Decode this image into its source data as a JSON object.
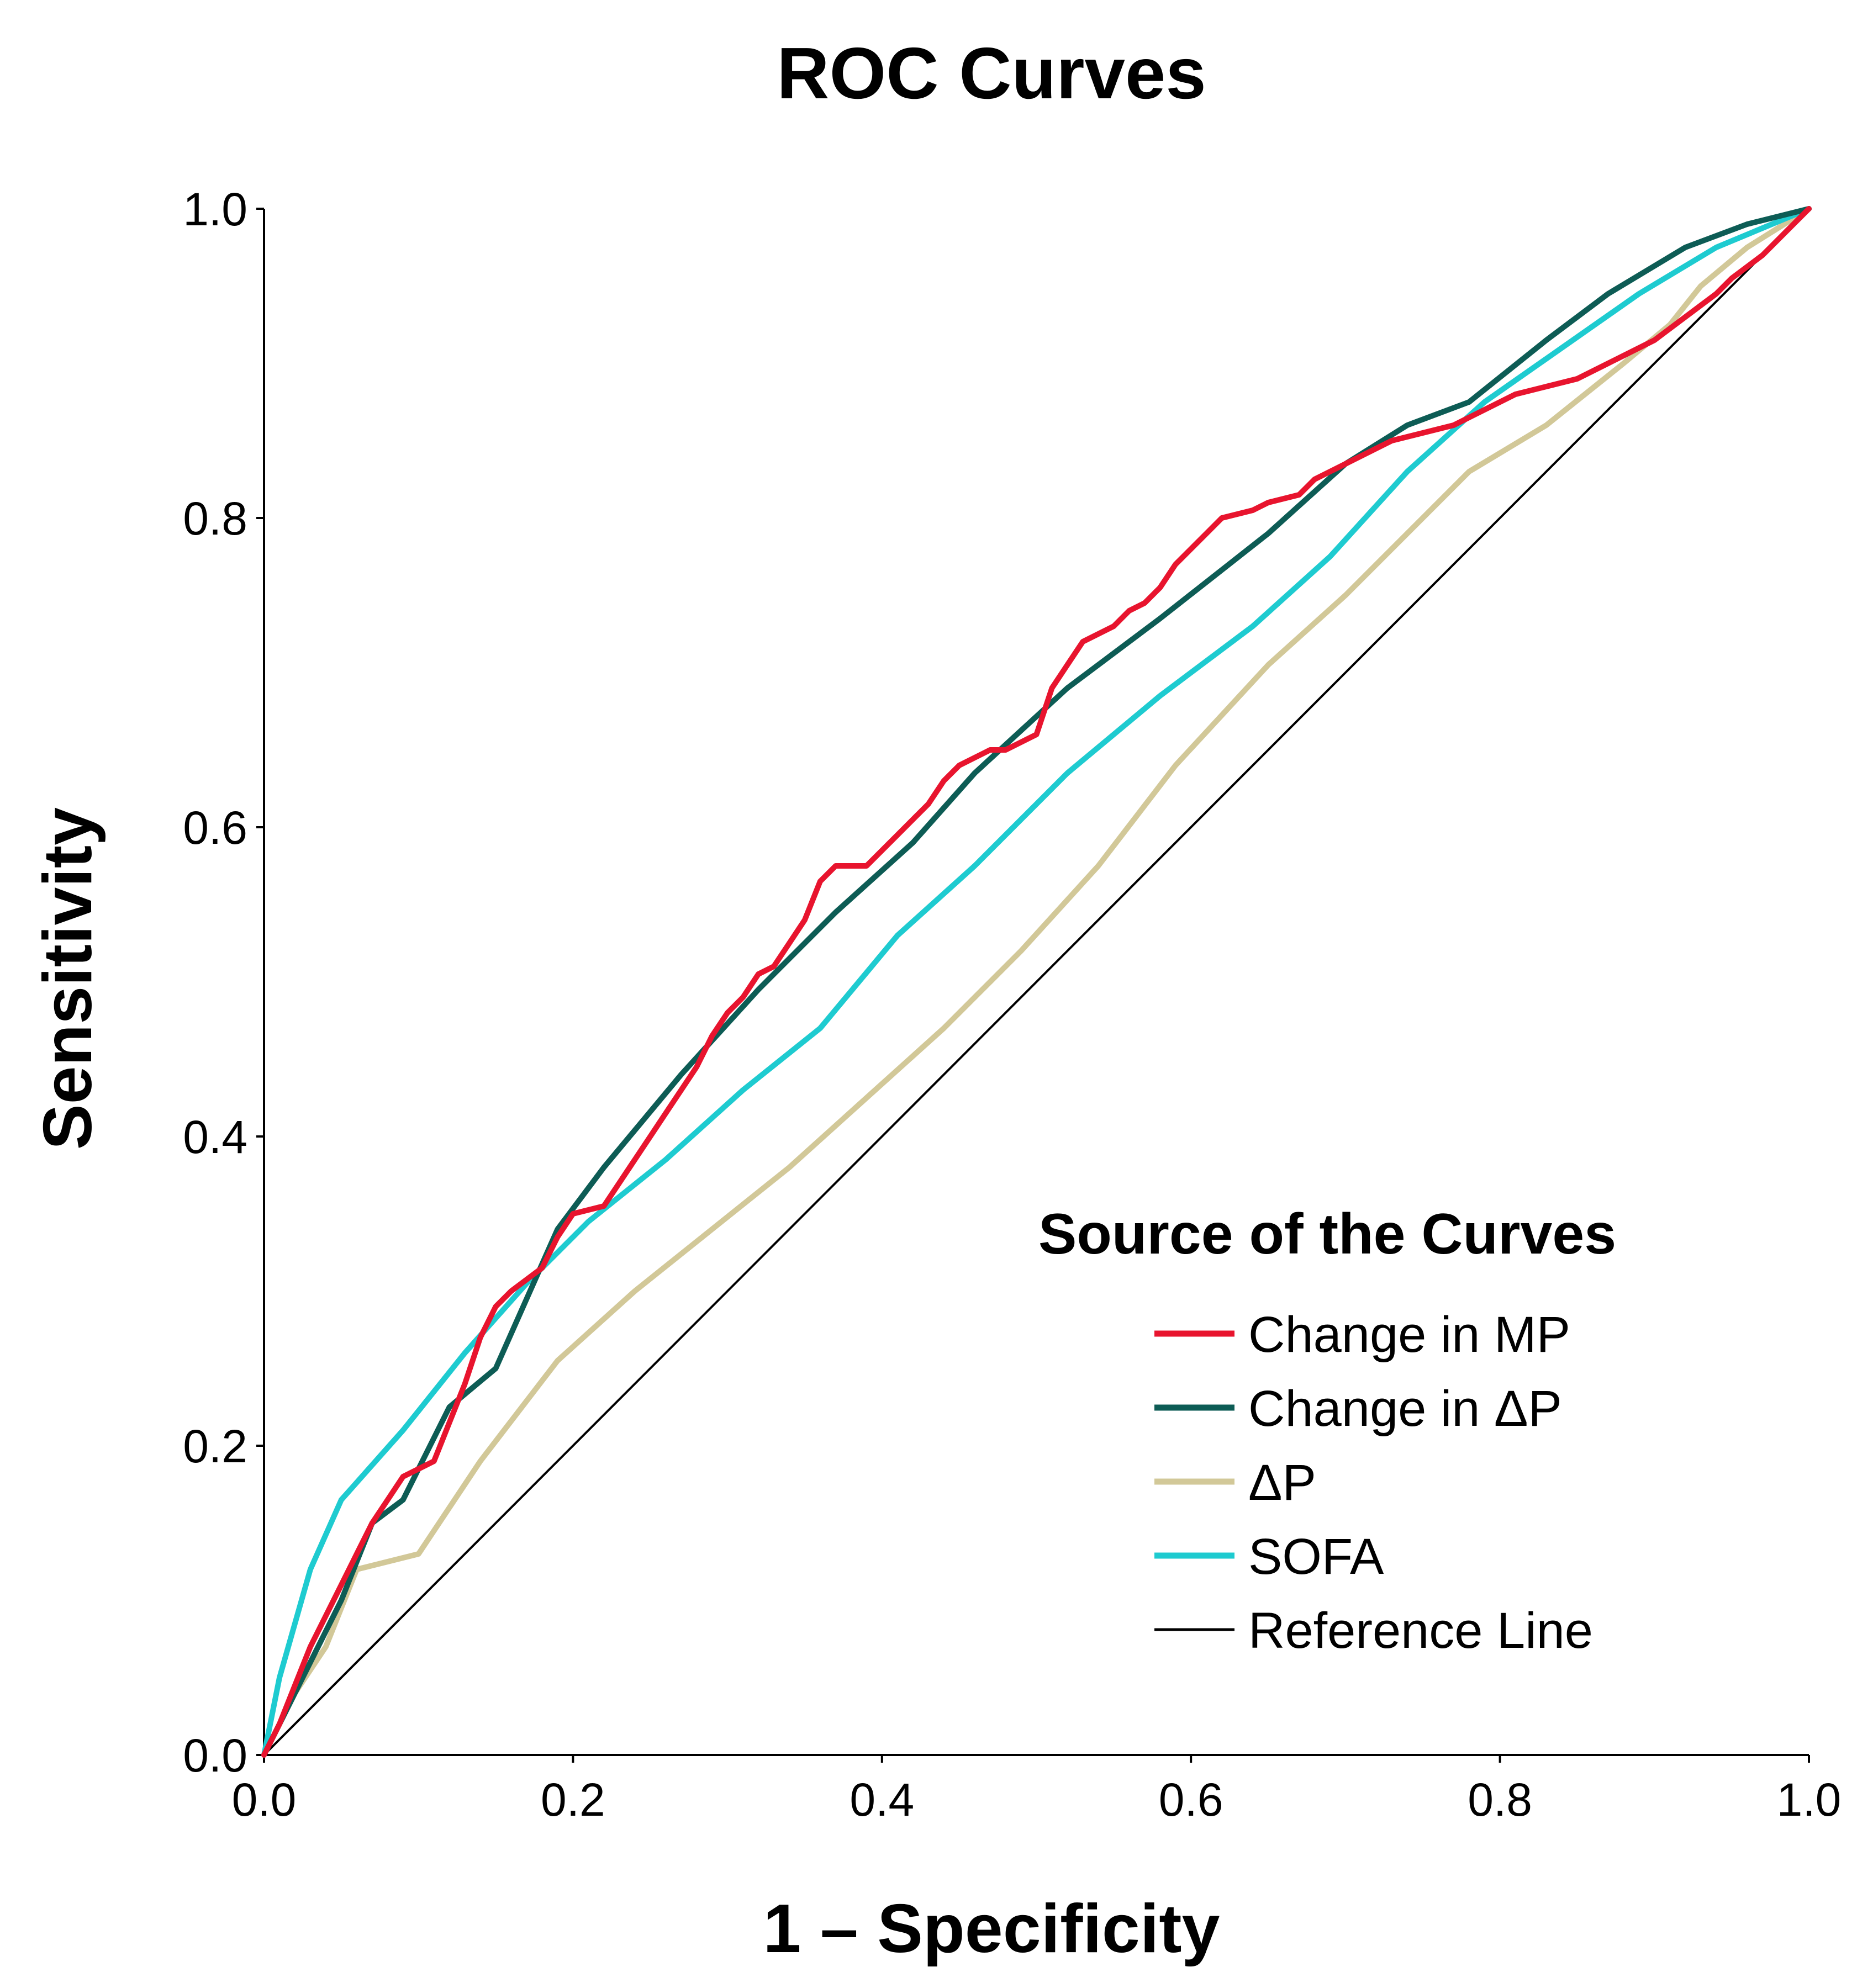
{
  "chart_data": {
    "type": "line",
    "title": "ROC Curves",
    "xlabel": "1 – Specificity",
    "ylabel": "Sensitivity",
    "xlim": [
      0.0,
      1.0
    ],
    "ylim": [
      0.0,
      1.0
    ],
    "x_ticks": [
      "0.0",
      "0.2",
      "0.4",
      "0.6",
      "0.8",
      "1.0"
    ],
    "y_ticks": [
      "0.0",
      "0.2",
      "0.4",
      "0.6",
      "0.8",
      "1.0"
    ],
    "grid": false,
    "legend": {
      "title": "Source of the Curves",
      "placement": "bottom-right"
    },
    "series": [
      {
        "name": "Change in MP",
        "color": "#e8142e",
        "points": [
          [
            0.0,
            0.0
          ],
          [
            0.01,
            0.02
          ],
          [
            0.02,
            0.045
          ],
          [
            0.03,
            0.07
          ],
          [
            0.04,
            0.09
          ],
          [
            0.05,
            0.11
          ],
          [
            0.06,
            0.13
          ],
          [
            0.07,
            0.15
          ],
          [
            0.08,
            0.165
          ],
          [
            0.09,
            0.18
          ],
          [
            0.11,
            0.19
          ],
          [
            0.12,
            0.215
          ],
          [
            0.13,
            0.24
          ],
          [
            0.14,
            0.27
          ],
          [
            0.15,
            0.29
          ],
          [
            0.16,
            0.3
          ],
          [
            0.18,
            0.315
          ],
          [
            0.19,
            0.335
          ],
          [
            0.2,
            0.35
          ],
          [
            0.22,
            0.355
          ],
          [
            0.23,
            0.37
          ],
          [
            0.24,
            0.385
          ],
          [
            0.25,
            0.4
          ],
          [
            0.26,
            0.415
          ],
          [
            0.27,
            0.43
          ],
          [
            0.28,
            0.445
          ],
          [
            0.29,
            0.465
          ],
          [
            0.3,
            0.48
          ],
          [
            0.31,
            0.49
          ],
          [
            0.32,
            0.505
          ],
          [
            0.33,
            0.51
          ],
          [
            0.34,
            0.525
          ],
          [
            0.35,
            0.54
          ],
          [
            0.36,
            0.565
          ],
          [
            0.37,
            0.575
          ],
          [
            0.39,
            0.575
          ],
          [
            0.4,
            0.585
          ],
          [
            0.41,
            0.595
          ],
          [
            0.42,
            0.605
          ],
          [
            0.43,
            0.615
          ],
          [
            0.44,
            0.63
          ],
          [
            0.45,
            0.64
          ],
          [
            0.47,
            0.65
          ],
          [
            0.48,
            0.65
          ],
          [
            0.5,
            0.66
          ],
          [
            0.51,
            0.69
          ],
          [
            0.52,
            0.705
          ],
          [
            0.53,
            0.72
          ],
          [
            0.54,
            0.725
          ],
          [
            0.55,
            0.73
          ],
          [
            0.56,
            0.74
          ],
          [
            0.57,
            0.745
          ],
          [
            0.58,
            0.755
          ],
          [
            0.59,
            0.77
          ],
          [
            0.6,
            0.78
          ],
          [
            0.61,
            0.79
          ],
          [
            0.62,
            0.8
          ],
          [
            0.64,
            0.805
          ],
          [
            0.65,
            0.81
          ],
          [
            0.67,
            0.815
          ],
          [
            0.68,
            0.825
          ],
          [
            0.7,
            0.835
          ],
          [
            0.72,
            0.845
          ],
          [
            0.73,
            0.85
          ],
          [
            0.75,
            0.855
          ],
          [
            0.77,
            0.86
          ],
          [
            0.79,
            0.87
          ],
          [
            0.81,
            0.88
          ],
          [
            0.83,
            0.885
          ],
          [
            0.85,
            0.89
          ],
          [
            0.87,
            0.9
          ],
          [
            0.88,
            0.905
          ],
          [
            0.9,
            0.915
          ],
          [
            0.92,
            0.93
          ],
          [
            0.94,
            0.945
          ],
          [
            0.95,
            0.955
          ],
          [
            0.97,
            0.97
          ],
          [
            0.99,
            0.99
          ],
          [
            1.0,
            1.0
          ]
        ]
      },
      {
        "name": "Change in ΔP",
        "color": "#0d5c55",
        "points": [
          [
            0.0,
            0.0
          ],
          [
            0.04,
            0.08
          ],
          [
            0.05,
            0.1
          ],
          [
            0.07,
            0.15
          ],
          [
            0.09,
            0.165
          ],
          [
            0.12,
            0.225
          ],
          [
            0.15,
            0.25
          ],
          [
            0.19,
            0.34
          ],
          [
            0.22,
            0.38
          ],
          [
            0.27,
            0.44
          ],
          [
            0.32,
            0.495
          ],
          [
            0.37,
            0.545
          ],
          [
            0.42,
            0.59
          ],
          [
            0.46,
            0.635
          ],
          [
            0.52,
            0.69
          ],
          [
            0.58,
            0.735
          ],
          [
            0.65,
            0.79
          ],
          [
            0.7,
            0.835
          ],
          [
            0.74,
            0.86
          ],
          [
            0.78,
            0.875
          ],
          [
            0.83,
            0.915
          ],
          [
            0.87,
            0.945
          ],
          [
            0.92,
            0.975
          ],
          [
            0.96,
            0.99
          ],
          [
            1.0,
            1.0
          ]
        ]
      },
      {
        "name": "ΔP",
        "color": "#d2c898",
        "points": [
          [
            0.0,
            0.0
          ],
          [
            0.02,
            0.04
          ],
          [
            0.04,
            0.07
          ],
          [
            0.06,
            0.12
          ],
          [
            0.1,
            0.13
          ],
          [
            0.14,
            0.19
          ],
          [
            0.19,
            0.255
          ],
          [
            0.24,
            0.3
          ],
          [
            0.29,
            0.34
          ],
          [
            0.34,
            0.38
          ],
          [
            0.39,
            0.425
          ],
          [
            0.44,
            0.47
          ],
          [
            0.49,
            0.52
          ],
          [
            0.54,
            0.575
          ],
          [
            0.59,
            0.64
          ],
          [
            0.65,
            0.705
          ],
          [
            0.7,
            0.75
          ],
          [
            0.75,
            0.8
          ],
          [
            0.78,
            0.83
          ],
          [
            0.83,
            0.86
          ],
          [
            0.88,
            0.9
          ],
          [
            0.91,
            0.925
          ],
          [
            0.93,
            0.95
          ],
          [
            0.96,
            0.975
          ],
          [
            1.0,
            1.0
          ]
        ]
      },
      {
        "name": "SOFA",
        "color": "#1ecbd0",
        "points": [
          [
            0.0,
            0.0
          ],
          [
            0.01,
            0.05
          ],
          [
            0.03,
            0.12
          ],
          [
            0.05,
            0.165
          ],
          [
            0.09,
            0.21
          ],
          [
            0.13,
            0.26
          ],
          [
            0.17,
            0.305
          ],
          [
            0.21,
            0.345
          ],
          [
            0.26,
            0.385
          ],
          [
            0.31,
            0.43
          ],
          [
            0.36,
            0.47
          ],
          [
            0.41,
            0.53
          ],
          [
            0.46,
            0.575
          ],
          [
            0.52,
            0.635
          ],
          [
            0.58,
            0.685
          ],
          [
            0.64,
            0.73
          ],
          [
            0.69,
            0.775
          ],
          [
            0.74,
            0.83
          ],
          [
            0.79,
            0.875
          ],
          [
            0.84,
            0.91
          ],
          [
            0.89,
            0.945
          ],
          [
            0.94,
            0.975
          ],
          [
            1.0,
            1.0
          ]
        ]
      },
      {
        "name": "Reference Line",
        "color": "#000000",
        "points": [
          [
            0.0,
            0.0
          ],
          [
            1.0,
            1.0
          ]
        ]
      }
    ]
  }
}
